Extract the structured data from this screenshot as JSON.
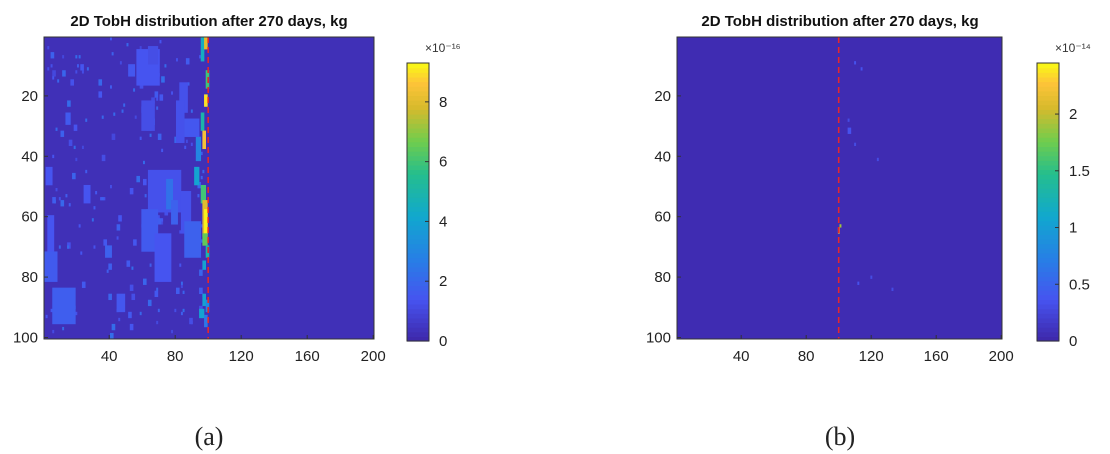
{
  "chart_data": [
    {
      "type": "heatmap",
      "title": "2D TobH distribution after 270 days, kg",
      "caption": "(a)",
      "colorbar_exponent": "×10⁻¹⁶",
      "xlim": [
        1,
        200
      ],
      "ylim": [
        1,
        100
      ],
      "y_direction": "reversed",
      "x_ticks": [
        "40",
        "80",
        "120",
        "160",
        "200"
      ],
      "y_ticks": [
        "20",
        "40",
        "60",
        "80",
        "100"
      ],
      "colorbar_range": [
        0,
        9.3
      ],
      "colorbar_ticks": [
        "0",
        "2",
        "4",
        "6",
        "8"
      ],
      "background_value": 0.3,
      "dashed_line_x": 100,
      "dashed_line_color": "#e8262a",
      "colormap": "parula",
      "cells": [
        [
          96,
          1,
          2,
          8,
          4.5
        ],
        [
          98,
          1,
          2,
          4,
          8.0
        ],
        [
          99,
          12,
          2,
          6,
          6.0
        ],
        [
          98,
          20,
          2,
          4,
          9.0
        ],
        [
          96,
          26,
          2,
          6,
          5.0
        ],
        [
          97,
          32,
          2,
          6,
          8.5
        ],
        [
          93,
          34,
          3,
          8,
          3.0
        ],
        [
          96,
          50,
          3,
          6,
          6.0
        ],
        [
          97,
          55,
          3,
          12,
          8.0
        ],
        [
          98,
          58,
          2,
          8,
          9.2
        ],
        [
          97,
          66,
          3,
          4,
          6.5
        ],
        [
          99,
          70,
          2,
          4,
          5.0
        ],
        [
          97,
          75,
          2,
          3,
          4.0
        ],
        [
          97,
          86,
          2,
          4,
          4.0
        ],
        [
          99,
          88,
          2,
          4,
          3.0
        ],
        [
          95,
          91,
          3,
          3,
          4.0
        ],
        [
          98,
          93,
          2,
          4,
          2.5
        ],
        [
          57,
          5,
          14,
          12,
          1.4
        ],
        [
          64,
          4,
          6,
          6,
          1.2
        ],
        [
          60,
          22,
          8,
          10,
          1.2
        ],
        [
          83,
          16,
          5,
          10,
          1.3
        ],
        [
          85,
          28,
          10,
          6,
          1.5
        ],
        [
          81,
          22,
          5,
          14,
          1.3
        ],
        [
          64,
          45,
          20,
          14,
          1.3
        ],
        [
          60,
          58,
          10,
          14,
          1.6
        ],
        [
          68,
          66,
          10,
          16,
          1.4
        ],
        [
          75,
          48,
          4,
          10,
          2.3
        ],
        [
          78,
          55,
          4,
          8,
          1.8
        ],
        [
          84,
          52,
          6,
          14,
          1.3
        ],
        [
          86,
          62,
          10,
          12,
          1.8
        ],
        [
          92,
          44,
          3,
          6,
          4.0
        ],
        [
          3,
          60,
          4,
          12,
          1.4
        ],
        [
          1,
          72,
          8,
          10,
          1.6
        ],
        [
          6,
          84,
          14,
          12,
          1.7
        ],
        [
          2,
          44,
          4,
          6,
          1.4
        ],
        [
          38,
          70,
          4,
          4,
          1.8
        ],
        [
          14,
          26,
          3,
          4,
          1.6
        ],
        [
          45,
          86,
          5,
          6,
          1.5
        ],
        [
          52,
          10,
          4,
          4,
          1.5
        ],
        [
          25,
          50,
          4,
          6,
          1.4
        ]
      ],
      "scatter_count": 180,
      "scatter_region": [
        1,
        98,
        1,
        100
      ],
      "scatter_value_range": [
        1.0,
        2.2
      ]
    },
    {
      "type": "heatmap",
      "title": "2D TobH distribution after 270 days, kg",
      "caption": "(b)",
      "colorbar_exponent": "×10⁻¹⁴",
      "xlim": [
        1,
        200
      ],
      "ylim": [
        1,
        100
      ],
      "y_direction": "reversed",
      "x_ticks": [
        "40",
        "80",
        "120",
        "160",
        "200"
      ],
      "y_ticks": [
        "20",
        "40",
        "60",
        "80",
        "100"
      ],
      "colorbar_range": [
        0,
        2.45
      ],
      "colorbar_ticks": [
        "0",
        "0.5",
        "1",
        "1.5",
        "2"
      ],
      "colorbar_tick_values": [
        0,
        0.5,
        1,
        1.5,
        2
      ],
      "background_value": 0.05,
      "dashed_line_x": 100,
      "dashed_line_color": "#e8262a",
      "colormap": "parula",
      "cells": [
        [
          100,
          64,
          1,
          2,
          2.2
        ],
        [
          101,
          63,
          1,
          1,
          1.9
        ],
        [
          110,
          9,
          1,
          1,
          0.35
        ],
        [
          114,
          11,
          1,
          1,
          0.35
        ],
        [
          106,
          31,
          2,
          2,
          0.35
        ],
        [
          110,
          36,
          1,
          1,
          0.3
        ],
        [
          112,
          82,
          1,
          1,
          0.35
        ],
        [
          120,
          80,
          1,
          1,
          0.3
        ],
        [
          106,
          28,
          1,
          1,
          0.3
        ],
        [
          133,
          84,
          1,
          1,
          0.3
        ],
        [
          124,
          41,
          1,
          1,
          0.3
        ]
      ],
      "scatter_count": 0,
      "scatter_region": [
        1,
        1,
        1,
        1
      ],
      "scatter_value_range": [
        0,
        0
      ]
    }
  ]
}
